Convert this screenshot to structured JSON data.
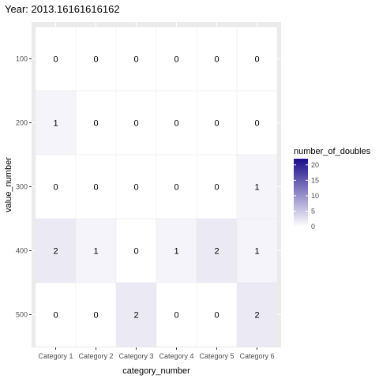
{
  "chart_data": {
    "type": "heatmap",
    "title": "Year: 2013.16161616162",
    "xlabel": "category_number",
    "ylabel": "value_number",
    "x_categories": [
      "Category 1",
      "Category 2",
      "Category 3",
      "Category 4",
      "Category 5",
      "Category 6"
    ],
    "y_categories": [
      100,
      200,
      300,
      400,
      500
    ],
    "values": [
      [
        0,
        0,
        0,
        0,
        0,
        0
      ],
      [
        1,
        0,
        0,
        0,
        0,
        0
      ],
      [
        0,
        0,
        0,
        0,
        0,
        1
      ],
      [
        2,
        1,
        0,
        1,
        2,
        1
      ],
      [
        0,
        0,
        2,
        0,
        0,
        2
      ]
    ],
    "legend": {
      "title": "number_of_doubles",
      "ticks": [
        0,
        5,
        10,
        15,
        20
      ],
      "min": 0,
      "max": 22,
      "low_color": "#ffffff",
      "high_color": "#1a0d8a"
    },
    "panel_background": "#ebebeb",
    "grid": true
  }
}
